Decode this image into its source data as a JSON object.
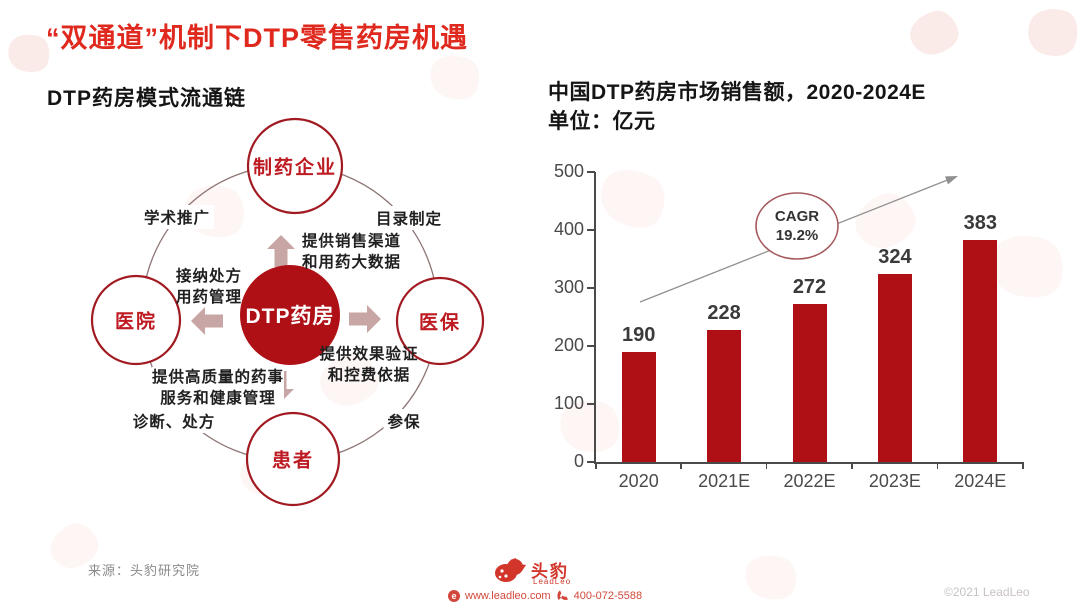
{
  "page_title": "“双通道”机制下DTP零售药房机遇",
  "left_section": {
    "title": "DTP药房模式流通链",
    "diagram": {
      "center": {
        "label": "DTP药房"
      },
      "nodes": [
        {
          "id": "pharma-company",
          "label": "制药企业"
        },
        {
          "id": "hospital",
          "label": "医院"
        },
        {
          "id": "insurance",
          "label": "医保"
        },
        {
          "id": "patient",
          "label": "患者"
        }
      ],
      "ring_labels": [
        {
          "id": "academic-promotion",
          "label": "学术推广"
        },
        {
          "id": "catalog-setting",
          "label": "目录制定"
        },
        {
          "id": "diagnosis-prescription",
          "label": "诊断、处方"
        },
        {
          "id": "enrollment",
          "label": "参保"
        }
      ],
      "arrow_captions": {
        "to_pharma": {
          "line1": "提供销售渠道",
          "line2": "和用药大数据"
        },
        "to_hospital": {
          "line1": "接纳处方",
          "line2": "用药管理"
        },
        "to_insurance": {
          "line1": "提供效果验证",
          "line2": "和控费依据"
        },
        "to_patient": {
          "line1": "提供高质量的药事",
          "line2": "服务和健康管理"
        }
      }
    }
  },
  "chart": {
    "title_line1": "中国DTP药房市场销售额，2020-2024E",
    "title_line2": "单位：亿元",
    "cagr_label": "CAGR",
    "cagr_value": "19.2%"
  },
  "chart_data": {
    "type": "bar",
    "title": "中国DTP药房市场销售额，2020-2024E",
    "unit": "亿元",
    "categories": [
      "2020",
      "2021E",
      "2022E",
      "2023E",
      "2024E"
    ],
    "values": [
      190,
      228,
      272,
      324,
      383
    ],
    "ylim": [
      0,
      500
    ],
    "yticks": [
      0,
      100,
      200,
      300,
      400,
      500
    ],
    "annotation": "CAGR 19.2%",
    "bar_color": "#AE1016",
    "grid": false,
    "legend": false
  },
  "source": "来源：头豹研究院",
  "footer": {
    "brand_cn": "头豹",
    "brand_en": "LeadLeo",
    "website": "www.leadleo.com",
    "phone": "400-072-5588",
    "copyright": "©2021 LeadLeo"
  },
  "colors": {
    "title_red": "#E0291E",
    "bar_red": "#AE1016",
    "node_border_red": "#A11A22",
    "block_arrow": "#C9A6A6",
    "ring_stroke": "#8F7676",
    "footer_red": "#D2473B"
  }
}
